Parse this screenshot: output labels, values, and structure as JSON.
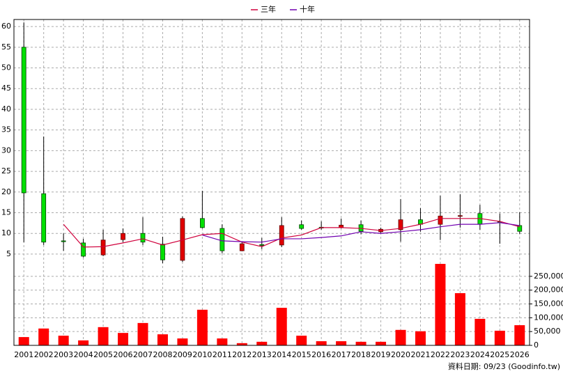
{
  "chart_data": [
    {
      "type": "candlestick",
      "categories": [
        "2001",
        "2002",
        "2003",
        "2004",
        "2005",
        "2006",
        "2007",
        "2008",
        "2009",
        "2010",
        "2011",
        "2012",
        "2013",
        "2014",
        "2015",
        "2016",
        "2017",
        "2018",
        "2019",
        "2020",
        "2021",
        "2022",
        "2023",
        "2024",
        "2025",
        "2026"
      ],
      "open": [
        55,
        19.6,
        8.2,
        7.7,
        4.8,
        8.5,
        10.0,
        7.4,
        3.5,
        13.6,
        11.2,
        5.8,
        7.3,
        7.2,
        12.1,
        11.5,
        11.4,
        12.1,
        10.4,
        10.9,
        13.3,
        12.2,
        14.2,
        14.8,
        12.8,
        11.9
      ],
      "high": [
        61,
        33.4,
        10,
        8.7,
        10.9,
        11.2,
        13.9,
        9.2,
        14.1,
        20.3,
        12.2,
        7.9,
        8.9,
        13.9,
        13.1,
        12.9,
        13.6,
        13.1,
        11.4,
        18.3,
        16.1,
        19.1,
        19.5,
        16.9,
        14.8,
        15.1
      ],
      "low": [
        7.9,
        7.2,
        5.8,
        4.2,
        4.5,
        7.9,
        7.2,
        2.8,
        3.1,
        11.2,
        5.2,
        5.7,
        6.2,
        6.7,
        10.9,
        10.9,
        11.2,
        9.8,
        10.1,
        8.0,
        10.4,
        8.4,
        11.4,
        10.9,
        7.5,
        9.9
      ],
      "close": [
        19.8,
        7.9,
        8.0,
        4.5,
        8.4,
        10.0,
        7.9,
        3.6,
        13.6,
        11.4,
        5.8,
        7.5,
        7.1,
        11.9,
        11.2,
        11.3,
        12.0,
        10.5,
        11.0,
        13.3,
        12.2,
        14.2,
        14.3,
        12.2,
        12.6,
        10.5
      ],
      "up_color": "#e00000",
      "down_color": "#00e000",
      "series": [
        {
          "name": "三年",
          "color": "#d0003c",
          "values": [
            null,
            null,
            12.2,
            6.7,
            6.8,
            7.7,
            8.7,
            7.2,
            8.4,
            9.7,
            10.0,
            7.9,
            6.8,
            8.9,
            9.6,
            11.4,
            11.4,
            11.2,
            10.7,
            11.2,
            12.2,
            13.6,
            13.6,
            13.6,
            12.9,
            11.6
          ]
        },
        {
          "name": "十年",
          "color": "#7000b0",
          "values": [
            null,
            null,
            null,
            null,
            null,
            null,
            null,
            null,
            null,
            9.6,
            8.2,
            8.0,
            7.9,
            8.7,
            8.7,
            9.0,
            9.4,
            10.4,
            10.0,
            10.4,
            10.9,
            11.6,
            12.2,
            12.2,
            12.6,
            11.9
          ]
        }
      ],
      "ylim": [
        2.8,
        61.7
      ],
      "yticks": [
        5,
        10,
        15,
        20,
        25,
        30,
        35,
        40,
        45,
        50,
        55,
        60
      ],
      "grid": true
    },
    {
      "type": "bar",
      "color": "#ff0000",
      "values": [
        30000,
        61000,
        35000,
        18000,
        66000,
        45000,
        81000,
        40000,
        25000,
        129000,
        25000,
        8000,
        13000,
        136000,
        35000,
        15000,
        15000,
        13000,
        13000,
        56000,
        51000,
        295000,
        189000,
        96000,
        53000,
        73000
      ],
      "ylim": [
        0,
        300000
      ],
      "yticks": [
        0,
        {
          "value": 50000,
          "label": "50,000"
        },
        {
          "value": 100000,
          "label": "100,000"
        },
        {
          "value": 150000,
          "label": "150,000"
        },
        {
          "value": 200000,
          "label": "200,000"
        },
        {
          "value": 250000,
          "label": "250,000"
        }
      ],
      "grid": true
    }
  ],
  "footer": "資料日期: 09/23 (Goodinfo.tw)"
}
